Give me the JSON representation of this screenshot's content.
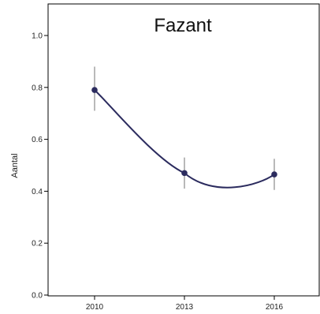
{
  "chart_data": {
    "type": "line",
    "title": "Fazant",
    "xlabel": "",
    "ylabel": "Aantal",
    "x": [
      "2010",
      "2013",
      "2016"
    ],
    "series": [
      {
        "values": [
          0.79,
          0.47,
          0.465
        ],
        "error_low": [
          0.71,
          0.41,
          0.405
        ],
        "error_high": [
          0.88,
          0.53,
          0.525
        ],
        "color": "#2b2b5e"
      }
    ],
    "ylim": [
      0.0,
      1.0
    ],
    "yticks": [
      "0.0",
      "0.2",
      "0.4",
      "0.6",
      "0.8",
      "1.0"
    ],
    "line_style": "smooth",
    "error_bar_color": "#8a8a8a",
    "grid": false,
    "legend": "none"
  }
}
